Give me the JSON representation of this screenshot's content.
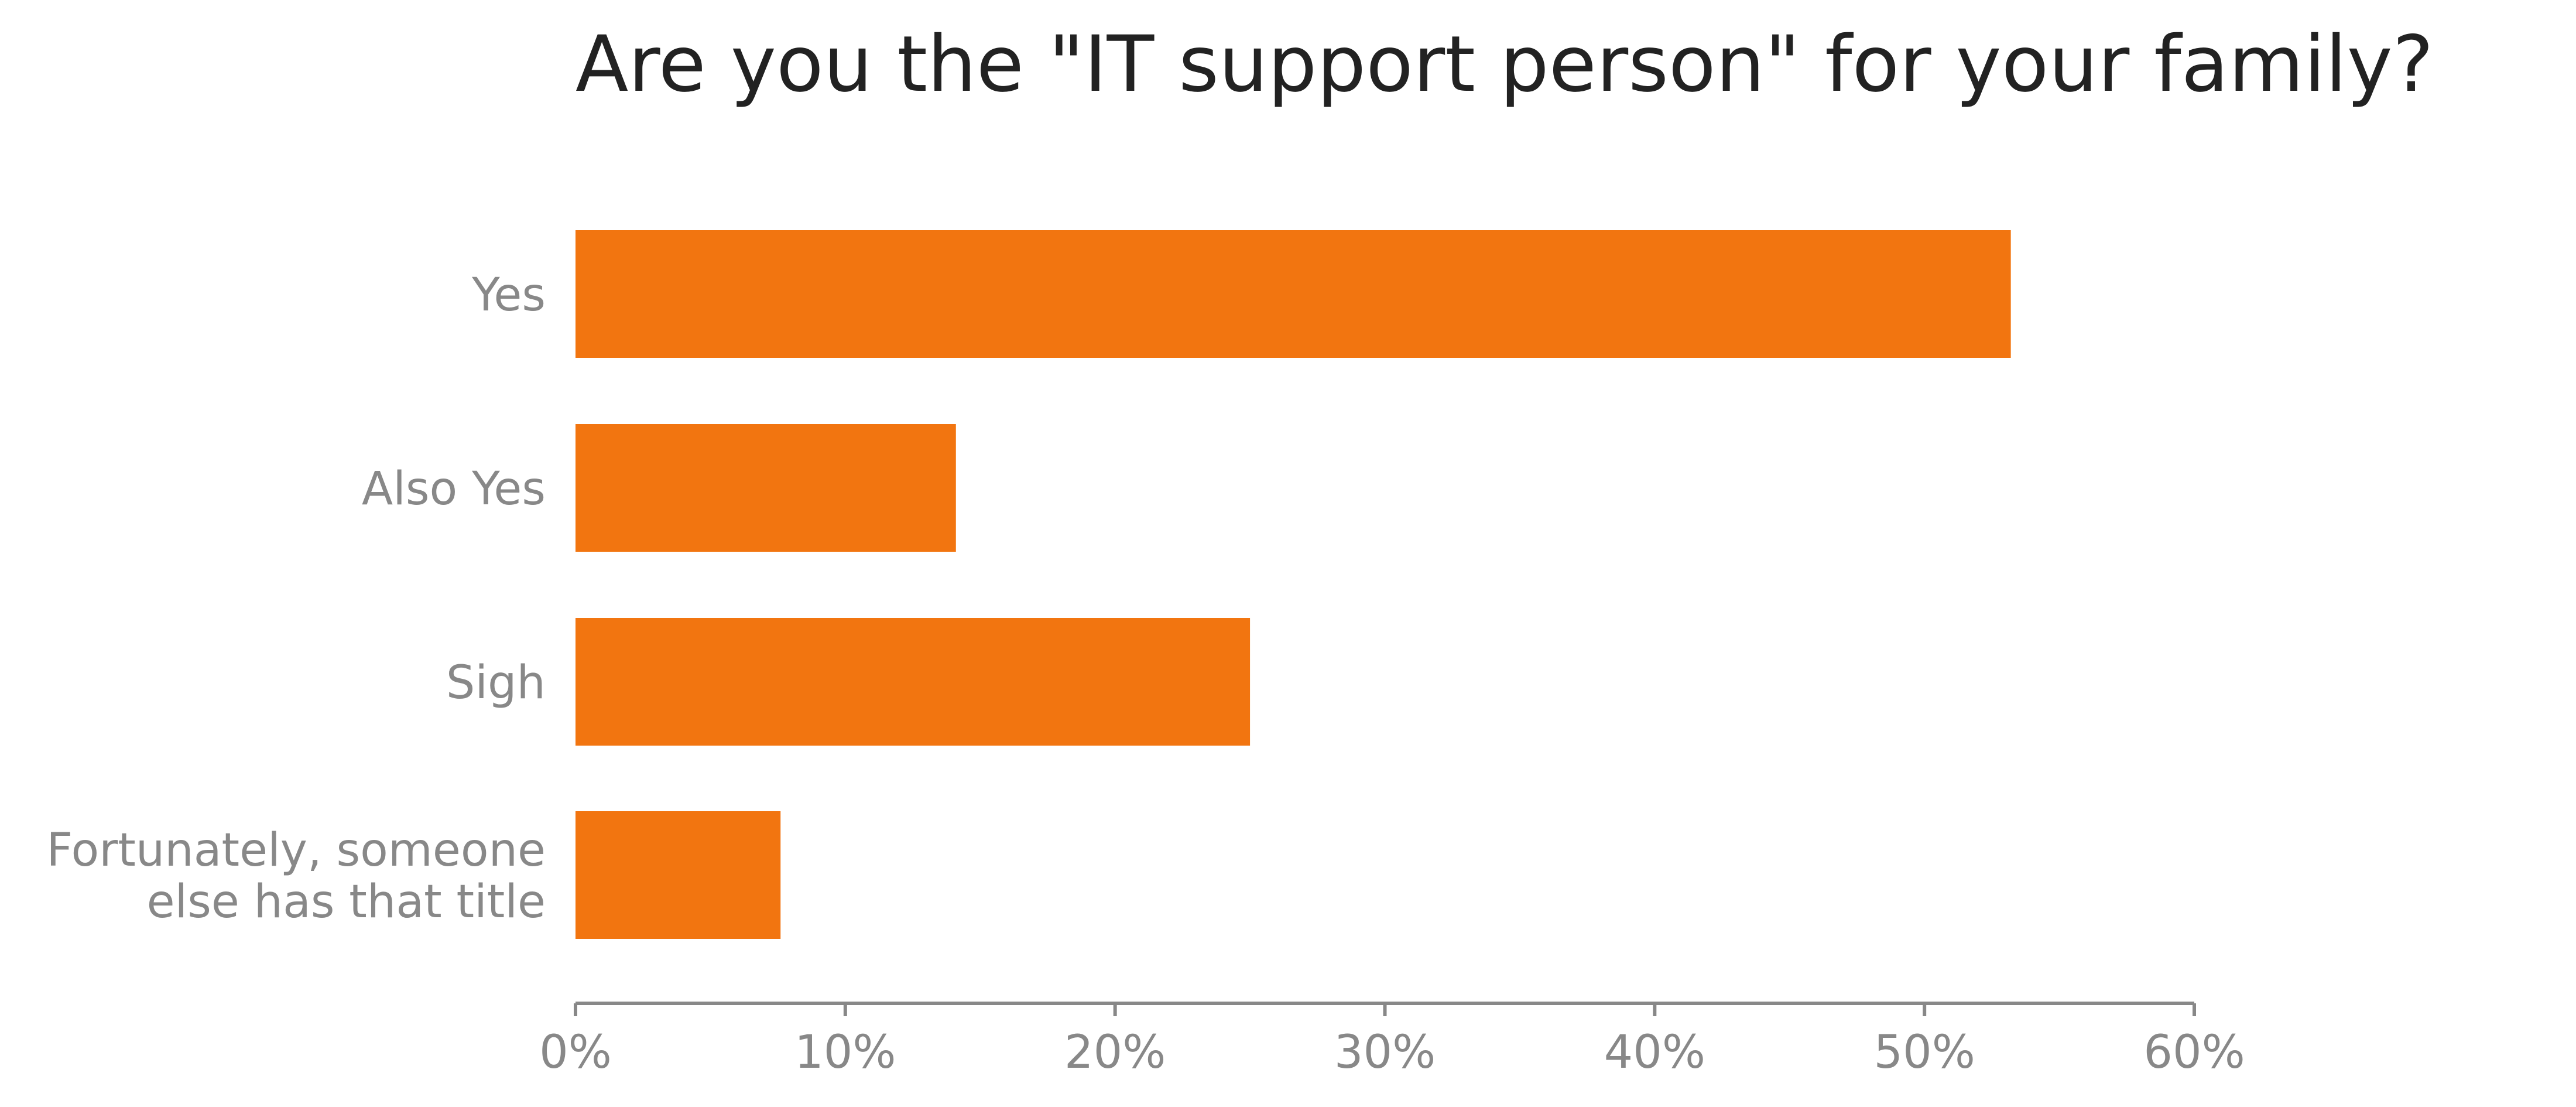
{
  "chart_data": {
    "type": "bar",
    "orientation": "horizontal",
    "title": "Are you the \"IT support person\" for your family?",
    "xlabel": "",
    "ylabel": "",
    "categories": [
      [
        "Yes"
      ],
      [
        "Also Yes"
      ],
      [
        "Sigh"
      ],
      [
        "Fortunately, someone",
        "else has that title"
      ]
    ],
    "values": [
      53.2,
      14.1,
      25.0,
      7.6
    ],
    "xlim": [
      0,
      60
    ],
    "xticks": [
      0,
      10,
      20,
      30,
      40,
      50,
      60
    ],
    "xtick_labels": [
      "0%",
      "10%",
      "20%",
      "30%",
      "40%",
      "50%",
      "60%"
    ],
    "bar_color": "#f27510",
    "axis_color": "#888888",
    "grid": false,
    "legend": "none"
  }
}
